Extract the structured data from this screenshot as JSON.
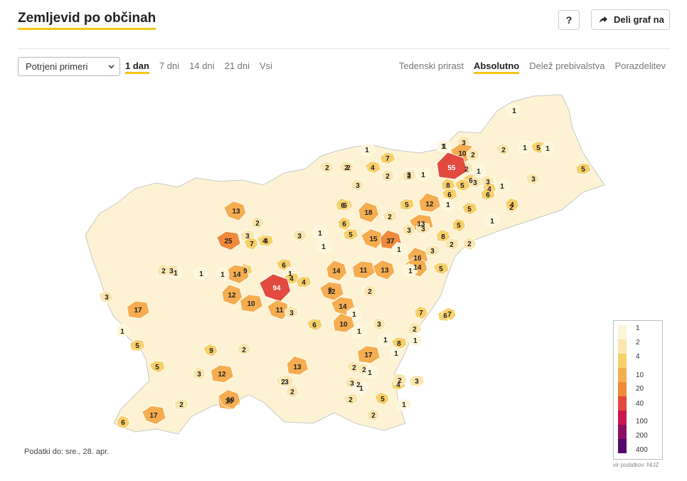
{
  "header": {
    "title": "Zemljevid po občinah",
    "help_label": "?",
    "share_label": "Deli graf na"
  },
  "controls": {
    "select_value": "Potrjeni primeri",
    "period_tabs": [
      "1 dan",
      "7 dni",
      "14 dni",
      "21 dni",
      "Vsi"
    ],
    "period_active": "1 dan",
    "mode_tabs": [
      "Tedenski prirast",
      "Absolutno",
      "Delež prebivalstva",
      "Porazdelitev"
    ],
    "mode_active": "Absolutno"
  },
  "map": {
    "municipality_values": [
      1,
      3,
      10,
      2,
      1,
      2,
      1,
      5,
      1,
      5,
      1,
      2,
      1,
      2,
      7,
      2,
      2,
      4,
      2,
      3,
      1,
      55,
      6,
      1,
      3,
      3,
      8,
      5,
      4,
      1,
      3,
      6,
      6,
      2,
      3,
      3,
      12,
      5,
      4,
      6,
      13,
      6,
      2,
      18,
      5,
      1,
      8,
      13,
      5,
      3,
      3,
      1,
      25,
      2,
      3,
      4,
      1,
      3,
      6,
      5,
      15,
      37,
      2,
      2,
      4,
      7,
      1,
      1,
      16,
      3,
      14,
      9,
      6,
      14,
      11,
      13,
      1,
      5,
      1,
      4,
      1,
      2,
      14,
      1,
      4,
      94,
      3,
      12,
      2,
      17,
      3,
      1,
      3,
      12,
      10,
      11,
      3,
      14,
      7,
      6,
      1,
      10,
      6,
      3,
      1,
      7,
      2,
      1,
      1,
      5,
      9,
      2,
      8,
      1,
      17,
      2,
      13,
      5,
      3,
      12,
      2,
      3,
      2,
      2,
      10,
      2,
      4,
      17,
      6,
      2,
      10,
      3,
      2,
      2,
      1,
      5,
      2,
      1,
      1,
      3,
      1
    ]
  },
  "legend": {
    "ticks": [
      "1",
      "2",
      "4",
      "10",
      "20",
      "40",
      "100",
      "200",
      "400"
    ],
    "colors": [
      "#fdf5d8",
      "#fbe6b0",
      "#f8d06a",
      "#f5ad50",
      "#ef8a3b",
      "#e2493f",
      "#c9174f",
      "#8b1061",
      "#55086a"
    ]
  },
  "footer": {
    "data_date": "Podatki do: sre., 28. apr.",
    "source": "vir podatkov: NIJZ"
  }
}
